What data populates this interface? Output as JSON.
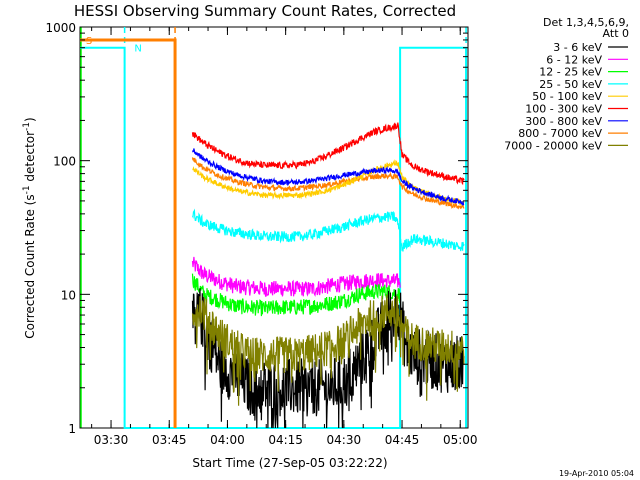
{
  "chart_data": {
    "type": "line",
    "title": "HESSI Observing Summary Count Rates, Corrected",
    "xlabel": "Start Time (27-Sep-05 03:22:22)",
    "ylabel": "Corrected Count Rate (s-1 detector-1)",
    "ylabel_parts": {
      "main": "Corrected Count Rate (s",
      "sup1": "-1",
      "mid": " detector",
      "sup2": "-1",
      "end": ")"
    },
    "x_unit": "minutes since 03:00 UT",
    "xlim": [
      22,
      122
    ],
    "ylim": [
      1,
      1000
    ],
    "yscale": "log",
    "x_ticks": [
      {
        "v": 30,
        "label": "03:30"
      },
      {
        "v": 45,
        "label": "03:45"
      },
      {
        "v": 60,
        "label": "04:00"
      },
      {
        "v": 75,
        "label": "04:15"
      },
      {
        "v": 90,
        "label": "04:30"
      },
      {
        "v": 105,
        "label": "04:45"
      },
      {
        "v": 120,
        "label": "05:00"
      }
    ],
    "y_ticks": [
      {
        "v": 1,
        "label": "1"
      },
      {
        "v": 10,
        "label": "10"
      },
      {
        "v": 100,
        "label": "100"
      },
      {
        "v": 1000,
        "label": "1000"
      }
    ],
    "legend": {
      "header": "Det 1,3,4,5,6,9,",
      "subheader": "Att 0",
      "placement": "right"
    },
    "series": [
      {
        "name": "3 - 6 keV",
        "color": "#000000",
        "x": [
          51,
          53,
          55,
          58,
          62,
          66,
          70,
          74,
          78,
          82,
          86,
          90,
          93,
          96,
          99,
          101,
          103,
          104,
          105,
          106,
          108,
          112,
          116,
          119,
          121
        ],
        "y": [
          6,
          7,
          5,
          3,
          2.5,
          2,
          2,
          2,
          2,
          2,
          2,
          2.2,
          2.8,
          3.8,
          5,
          6.5,
          7.5,
          8,
          6,
          4,
          3.5,
          3.2,
          3,
          3,
          3
        ],
        "noise": 0.22
      },
      {
        "name": "6 - 12 keV",
        "color": "#ff00ff",
        "x": [
          51,
          54,
          58,
          62,
          66,
          70,
          74,
          78,
          82,
          86,
          90,
          94,
          98,
          101,
          103,
          104,
          104.6
        ],
        "y": [
          17,
          14,
          12.5,
          11.5,
          11.2,
          11,
          11,
          11,
          11,
          11.5,
          12,
          12.5,
          12.8,
          12.6,
          12.5,
          12.5,
          12.4
        ],
        "noise": 0.06
      },
      {
        "name": "12 - 25 keV",
        "color": "#00ff00",
        "x": [
          51,
          54,
          58,
          62,
          66,
          70,
          74,
          78,
          82,
          86,
          90,
          94,
          98,
          101,
          103,
          104,
          104.6
        ],
        "y": [
          13,
          10,
          9,
          8.2,
          8,
          7.8,
          8,
          8,
          8.2,
          8.5,
          9,
          10,
          10.5,
          10.5,
          10.2,
          10,
          10
        ],
        "noise": 0.06
      },
      {
        "name": "25 - 50 keV",
        "color": "#00ffff",
        "x": [
          51,
          54,
          58,
          62,
          66,
          70,
          74,
          78,
          82,
          86,
          90,
          94,
          98,
          101,
          103,
          104,
          105,
          106,
          107,
          108,
          112,
          116,
          119,
          121
        ],
        "y": [
          40,
          34,
          31,
          29,
          28,
          27,
          27,
          27,
          28,
          30,
          32,
          35,
          37,
          38,
          38,
          34,
          22,
          24,
          25,
          26,
          25,
          24,
          23,
          23
        ],
        "noise": 0.04
      },
      {
        "name": "50 - 100 keV",
        "color": "#ffcc00",
        "x": [
          51,
          54,
          58,
          62,
          66,
          70,
          74,
          78,
          82,
          86,
          90,
          94,
          98,
          101,
          103,
          104,
          105,
          108,
          112,
          116,
          119,
          121
        ],
        "y": [
          88,
          75,
          66,
          60,
          57,
          55,
          55,
          55,
          57,
          60,
          66,
          75,
          85,
          92,
          95,
          95,
          75,
          62,
          56,
          52,
          50,
          48
        ],
        "noise": 0.02
      },
      {
        "name": "100 - 300 keV",
        "color": "#ff0000",
        "x": [
          51,
          54,
          58,
          62,
          66,
          70,
          74,
          78,
          82,
          86,
          90,
          94,
          98,
          101,
          103,
          104,
          105,
          108,
          112,
          116,
          119,
          121
        ],
        "y": [
          160,
          135,
          115,
          102,
          95,
          92,
          92,
          93,
          98,
          110,
          125,
          145,
          165,
          175,
          180,
          185,
          110,
          90,
          82,
          76,
          72,
          70
        ],
        "noise": 0.025
      },
      {
        "name": "300 - 800 keV",
        "color": "#0000ff",
        "x": [
          51,
          54,
          58,
          62,
          66,
          70,
          74,
          78,
          82,
          86,
          90,
          94,
          98,
          101,
          103,
          104,
          105,
          108,
          112,
          116,
          119,
          121
        ],
        "y": [
          120,
          102,
          88,
          79,
          74,
          70,
          69,
          69,
          71,
          74,
          78,
          81,
          84,
          85,
          84,
          82,
          70,
          62,
          56,
          52,
          50,
          49
        ],
        "noise": 0.02
      },
      {
        "name": "800 - 7000 keV",
        "color": "#ff7f00",
        "x": [
          51,
          54,
          58,
          62,
          66,
          70,
          74,
          78,
          82,
          86,
          90,
          94,
          98,
          101,
          103,
          104,
          105,
          108,
          112,
          116,
          119,
          121
        ],
        "y": [
          104,
          88,
          77,
          70,
          66,
          63,
          62,
          62,
          64,
          66,
          70,
          73,
          76,
          77,
          76,
          75,
          64,
          56,
          51,
          48,
          46,
          45
        ],
        "noise": 0.02
      },
      {
        "name": "7000 - 20000 keV",
        "color": "#808000",
        "x": [
          51,
          53,
          55,
          58,
          62,
          66,
          70,
          74,
          78,
          82,
          86,
          90,
          93,
          96,
          99,
          101,
          103,
          104,
          105,
          106,
          108,
          112,
          116,
          119,
          121
        ],
        "y": [
          7.5,
          8,
          6.5,
          5,
          4,
          3.5,
          3.5,
          3.5,
          3.5,
          3.7,
          4,
          4.5,
          5.5,
          6.5,
          7,
          7.5,
          7.5,
          7,
          6,
          5,
          4.5,
          4.2,
          4,
          4,
          4
        ],
        "noise": 0.14
      }
    ],
    "annotations": {
      "cyan_steps": {
        "color": "#00ffff",
        "x": [
          22,
          33.5,
          33.5,
          50.5,
          50.5,
          104.5,
          104.5,
          121.5,
          121.5
        ],
        "y": [
          700,
          700,
          1,
          1,
          1,
          1,
          700,
          700,
          1
        ]
      },
      "orange_step": {
        "color": "#ff7f00",
        "x": [
          22,
          46.5,
          46.5
        ],
        "y": [
          800,
          800,
          1
        ]
      },
      "vlines": [
        {
          "x": 33.5,
          "color": "#00ffff"
        },
        {
          "x": 46.5,
          "color": "#ff7f00"
        },
        {
          "x": 121.5,
          "color": "#00ffff"
        }
      ],
      "green_marker": {
        "x": 22,
        "color": "#00ff00"
      },
      "markers": [
        {
          "x": 23.5,
          "y": 800,
          "text": "S",
          "color": "#ff7f00"
        },
        {
          "x": 36,
          "y": 700,
          "text": "N",
          "color": "#00ffff"
        }
      ]
    },
    "timestamp": "19-Apr-2010 05:04"
  }
}
